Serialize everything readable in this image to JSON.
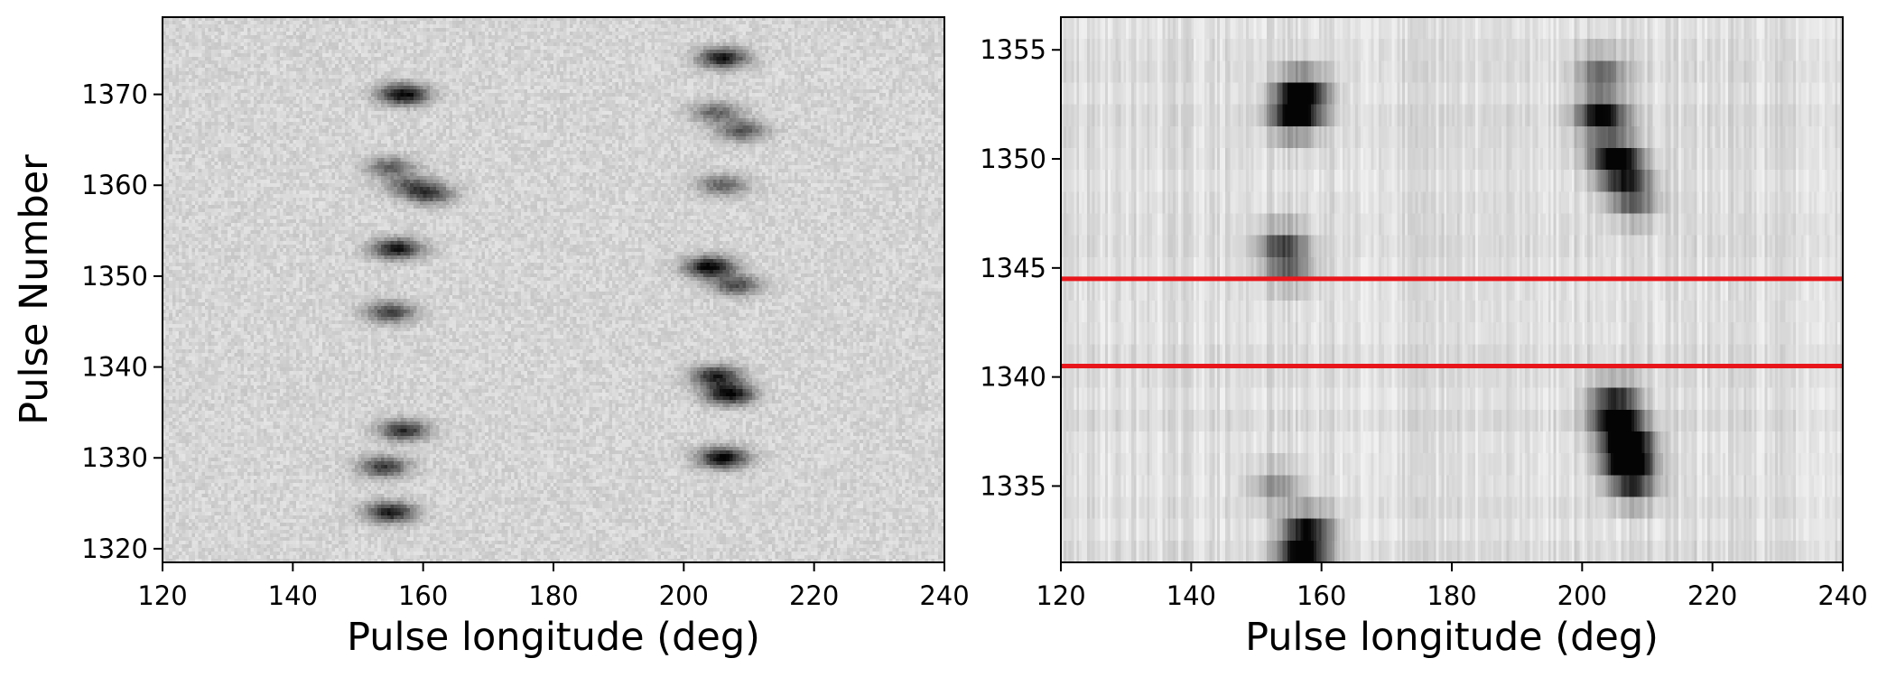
{
  "chart_data": [
    {
      "type": "heatmap",
      "colormap": "gray_r",
      "xlabel": "Pulse longitude (deg)",
      "ylabel": "Pulse Number",
      "xlim": [
        120,
        240
      ],
      "ylim": [
        1318.5,
        1378.5
      ],
      "xticks": [
        120,
        140,
        160,
        180,
        200,
        220,
        240
      ],
      "yticks": [
        1320,
        1330,
        1340,
        1350,
        1360,
        1370
      ],
      "grid": false,
      "features": [
        {
          "pulse": 1370,
          "longitude": 157,
          "intensity": 0.95
        },
        {
          "pulse": 1374,
          "longitude": 206,
          "intensity": 0.85
        },
        {
          "pulse": 1368,
          "longitude": 205,
          "intensity": 0.5
        },
        {
          "pulse": 1366,
          "longitude": 209,
          "intensity": 0.55
        },
        {
          "pulse": 1362,
          "longitude": 155,
          "intensity": 0.5
        },
        {
          "pulse": 1360,
          "longitude": 158,
          "intensity": 0.45
        },
        {
          "pulse": 1359,
          "longitude": 161,
          "intensity": 0.6
        },
        {
          "pulse": 1360,
          "longitude": 206,
          "intensity": 0.5
        },
        {
          "pulse": 1353,
          "longitude": 156,
          "intensity": 0.85
        },
        {
          "pulse": 1351,
          "longitude": 204,
          "intensity": 0.95
        },
        {
          "pulse": 1349,
          "longitude": 208,
          "intensity": 0.6
        },
        {
          "pulse": 1346,
          "longitude": 155,
          "intensity": 0.65
        },
        {
          "pulse": 1339,
          "longitude": 205,
          "intensity": 0.8
        },
        {
          "pulse": 1337,
          "longitude": 207,
          "intensity": 0.95
        },
        {
          "pulse": 1333,
          "longitude": 157,
          "intensity": 0.75
        },
        {
          "pulse": 1330,
          "longitude": 206,
          "intensity": 0.95
        },
        {
          "pulse": 1329,
          "longitude": 154,
          "intensity": 0.7
        },
        {
          "pulse": 1324,
          "longitude": 155,
          "intensity": 0.85
        }
      ]
    },
    {
      "type": "heatmap",
      "colormap": "gray_r",
      "xlabel": "Pulse longitude (deg)",
      "ylabel": "",
      "xlim": [
        120,
        240
      ],
      "ylim": [
        1331.5,
        1356.5
      ],
      "xticks": [
        120,
        140,
        160,
        180,
        200,
        220,
        240
      ],
      "yticks": [
        1335,
        1340,
        1345,
        1350,
        1355
      ],
      "grid": false,
      "horizontal_lines": [
        {
          "y": 1340.5,
          "color": "#e8161b"
        },
        {
          "y": 1344.5,
          "color": "#e8161b"
        }
      ],
      "features": [
        {
          "pulse": 1353,
          "longitude": 157,
          "intensity": 1.0
        },
        {
          "pulse": 1352,
          "longitude": 156,
          "intensity": 0.9
        },
        {
          "pulse": 1354,
          "longitude": 203,
          "intensity": 0.5
        },
        {
          "pulse": 1352,
          "longitude": 203,
          "intensity": 1.0
        },
        {
          "pulse": 1350,
          "longitude": 205,
          "intensity": 1.0
        },
        {
          "pulse": 1349,
          "longitude": 207,
          "intensity": 0.55
        },
        {
          "pulse": 1348,
          "longitude": 208,
          "intensity": 0.4
        },
        {
          "pulse": 1346,
          "longitude": 154,
          "intensity": 0.55
        },
        {
          "pulse": 1345,
          "longitude": 155,
          "intensity": 0.4
        },
        {
          "pulse": 1339,
          "longitude": 205,
          "intensity": 0.6
        },
        {
          "pulse": 1338,
          "longitude": 205,
          "intensity": 0.75
        },
        {
          "pulse": 1337,
          "longitude": 207,
          "intensity": 1.0
        },
        {
          "pulse": 1336,
          "longitude": 207,
          "intensity": 1.0
        },
        {
          "pulse": 1335,
          "longitude": 208,
          "intensity": 0.5
        },
        {
          "pulse": 1335,
          "longitude": 153,
          "intensity": 0.35
        },
        {
          "pulse": 1333,
          "longitude": 158,
          "intensity": 0.7
        },
        {
          "pulse": 1332,
          "longitude": 157,
          "intensity": 0.9
        }
      ]
    }
  ]
}
